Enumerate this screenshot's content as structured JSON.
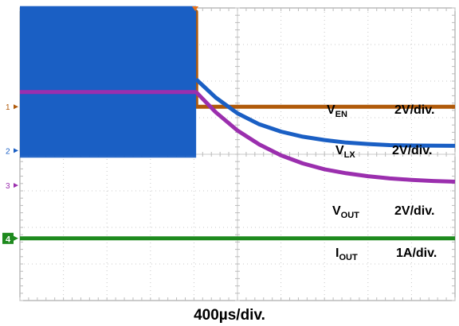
{
  "chart_data": {
    "type": "line",
    "title": "",
    "xlabel": "400µs/div.",
    "x_unit": "µs",
    "x_divisions": 10,
    "y_divisions": 8,
    "xlim": [
      0,
      4000
    ],
    "trigger_time": 1620,
    "channels": [
      {
        "id": "1",
        "name": "V_EN",
        "name_main": "V",
        "name_sub": "EN",
        "scale": "2V/div.",
        "color": "#b05a0a",
        "marker_div": 2.7,
        "points": [
          [
            0,
            2.6
          ],
          [
            1620,
            2.6
          ],
          [
            1621,
            0.0
          ],
          [
            4000,
            0.0
          ]
        ]
      },
      {
        "id": "2",
        "name": "V_LX",
        "name_main": "V",
        "name_sub": "LX",
        "scale": "2V/div.",
        "color": "#1a5fc4",
        "marker_div": 3.9,
        "burst_low": -0.15,
        "burst_high": 3.95,
        "points": [
          [
            1620,
            1.95
          ],
          [
            1800,
            1.45
          ],
          [
            2000,
            1.02
          ],
          [
            2200,
            0.72
          ],
          [
            2400,
            0.52
          ],
          [
            2600,
            0.38
          ],
          [
            2800,
            0.29
          ],
          [
            3000,
            0.22
          ],
          [
            3200,
            0.18
          ],
          [
            3400,
            0.15
          ],
          [
            3600,
            0.14
          ],
          [
            4000,
            0.13
          ]
        ]
      },
      {
        "id": "3",
        "name": "V_OUT",
        "name_main": "V",
        "name_sub": "OUT",
        "scale": "2V/div.",
        "color": "#9b2fae",
        "marker_div": 4.85,
        "points": [
          [
            0,
            2.55
          ],
          [
            1620,
            2.55
          ],
          [
            1800,
            2.0
          ],
          [
            2000,
            1.5
          ],
          [
            2200,
            1.12
          ],
          [
            2400,
            0.82
          ],
          [
            2600,
            0.6
          ],
          [
            2800,
            0.44
          ],
          [
            3000,
            0.33
          ],
          [
            3200,
            0.25
          ],
          [
            3400,
            0.19
          ],
          [
            3600,
            0.15
          ],
          [
            3800,
            0.12
          ],
          [
            4000,
            0.1
          ]
        ]
      },
      {
        "id": "4",
        "name": "I_OUT",
        "name_main": "I",
        "name_sub": "OUT",
        "scale": "1A/div.",
        "color": "#1e8a1e",
        "marker_div": 6.3,
        "points": [
          [
            0,
            0.0
          ],
          [
            4000,
            0.0
          ]
        ]
      }
    ]
  }
}
